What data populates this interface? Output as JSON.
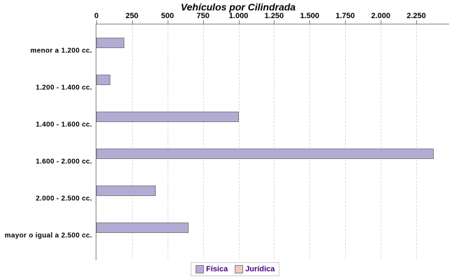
{
  "chart_data": {
    "type": "bar",
    "orientation": "horizontal",
    "title": "Vehículos por Cilindrada",
    "categories": [
      "menor a 1.200 cc.",
      "1.200 - 1.400 cc.",
      "1.400 - 1.600 cc.",
      "1.600 - 2.000 cc.",
      "2.000 - 2.500 cc.",
      "mayor o igual a 2.500 cc."
    ],
    "series": [
      {
        "name": "Física",
        "color": "#b4abd5",
        "border_color": "#7f7f7f",
        "values": [
          185,
          90,
          990,
          2365,
          410,
          640
        ]
      },
      {
        "name": "Jurídica",
        "color": "#f5c4c3",
        "border_color": "#7f7f7f",
        "values": [
          0,
          0,
          0,
          0,
          0,
          0
        ]
      }
    ],
    "value_axis": {
      "position": "top",
      "tick_labels": [
        "0",
        "250",
        "500",
        "750",
        "1.000",
        "1.250",
        "1.500",
        "1.750",
        "2.000",
        "2.250"
      ],
      "tick_values": [
        0,
        250,
        500,
        750,
        1000,
        1250,
        1500,
        1750,
        2000,
        2250
      ],
      "min": 0,
      "max": 2486,
      "grid": true
    },
    "legend_position": "bottom",
    "colors": {
      "axis_line": "#808080",
      "gridline": "#d9d9d9",
      "title_text": "#000000",
      "tick_text": "#000000",
      "category_text": "#000000",
      "legend_text": "#4b0082",
      "legend_border": "#cccccc",
      "background": "#ffffff"
    }
  }
}
